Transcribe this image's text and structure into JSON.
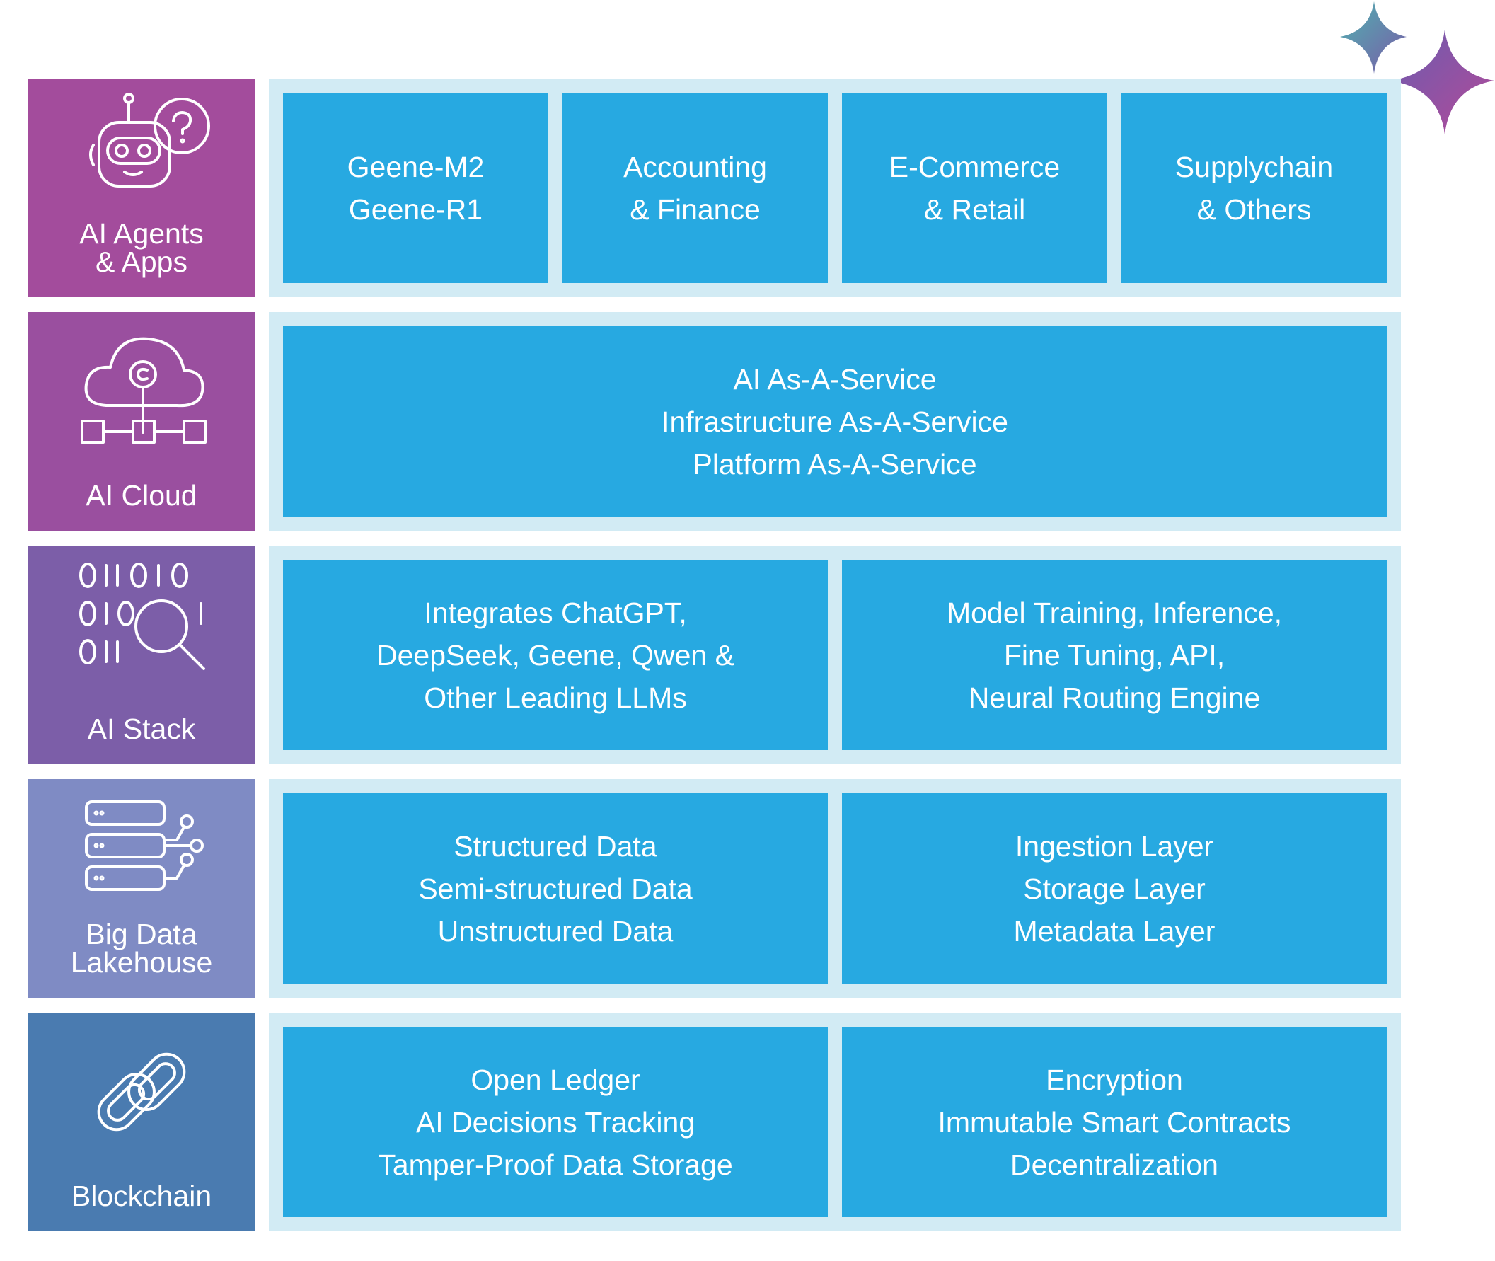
{
  "rows": [
    {
      "label": [
        "AI Agents",
        "& Apps"
      ],
      "boxes": [
        [
          "Geene-M2",
          "Geene-R1"
        ],
        [
          "Accounting",
          "& Finance"
        ],
        [
          "E-Commerce",
          "& Retail"
        ],
        [
          "Supplychain",
          "& Others"
        ]
      ]
    },
    {
      "label": [
        "AI Cloud"
      ],
      "boxes": [
        [
          "AI As-A-Service",
          "Infrastructure As-A-Service",
          "Platform As-A-Service"
        ]
      ]
    },
    {
      "label": [
        "AI Stack"
      ],
      "boxes": [
        [
          "Integrates ChatGPT,",
          "DeepSeek, Geene, Qwen &",
          "Other Leading LLMs"
        ],
        [
          "Model Training, Inference,",
          "Fine Tuning, API,",
          "Neural Routing Engine"
        ]
      ]
    },
    {
      "label": [
        "Big Data",
        "Lakehouse"
      ],
      "boxes": [
        [
          "Structured Data",
          "Semi-structured Data",
          "Unstructured Data"
        ],
        [
          "Ingestion Layer",
          "Storage Layer",
          "Metadata Layer"
        ]
      ]
    },
    {
      "label": [
        "Blockchain"
      ],
      "boxes": [
        [
          "Open Ledger",
          "AI Decisions Tracking",
          "Tamper-Proof Data Storage"
        ],
        [
          "Encryption",
          "Immutable Smart Contracts",
          "Decentralization"
        ]
      ]
    }
  ]
}
